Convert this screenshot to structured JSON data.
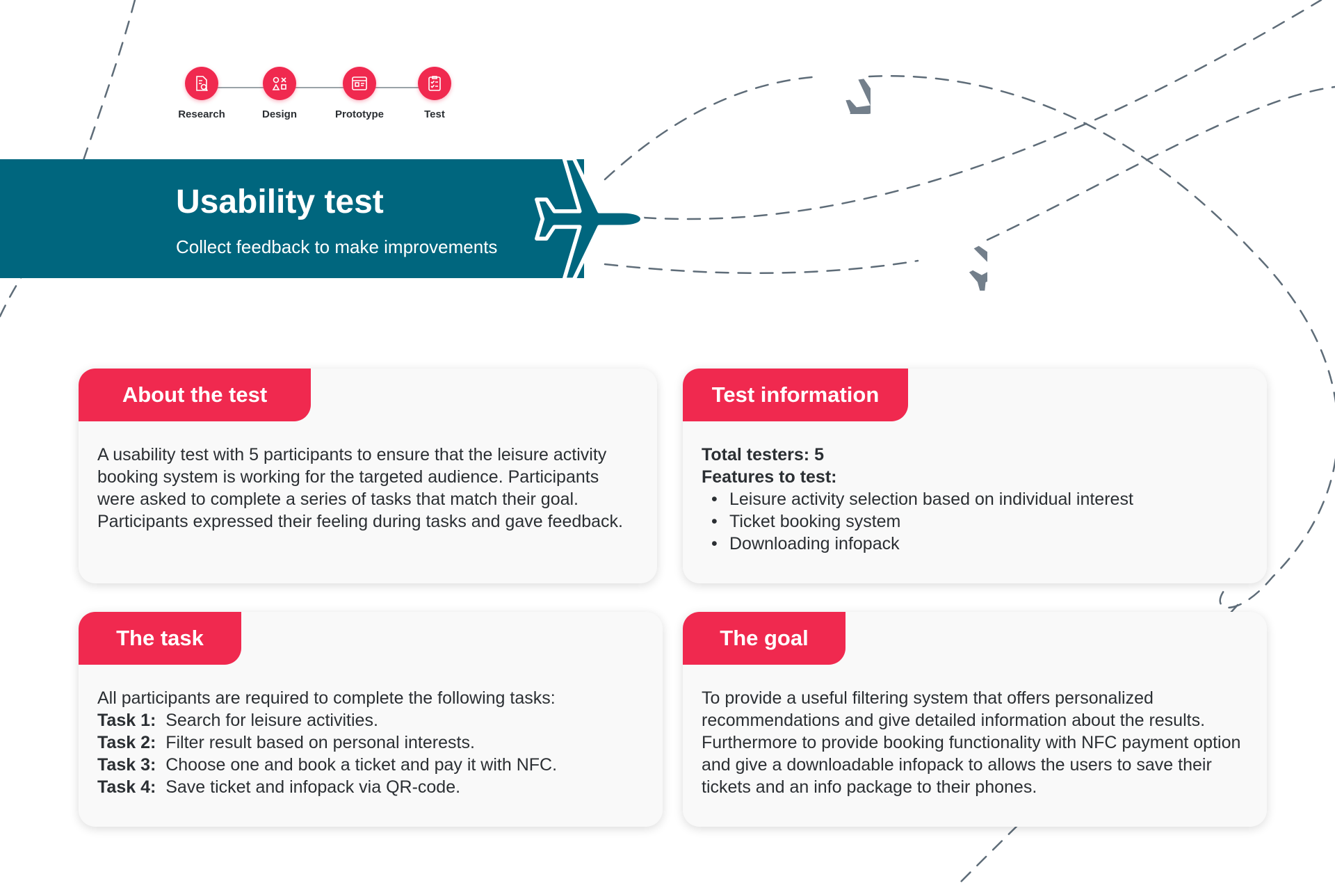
{
  "steps": [
    {
      "label": "Research",
      "icon": "research-icon"
    },
    {
      "label": "Design",
      "icon": "design-icon"
    },
    {
      "label": "Prototype",
      "icon": "prototype-icon"
    },
    {
      "label": "Test",
      "icon": "test-icon"
    }
  ],
  "header": {
    "title": "Usability test",
    "subtitle": "Collect feedback to make improvements"
  },
  "about": {
    "title": "About the test",
    "text": "A usability test with 5 participants to ensure that the leisure activity booking system is working for the targeted audience. Participants were asked to complete a series of tasks that match their goal. Participants expressed their feeling during tasks and gave feedback."
  },
  "info": {
    "title": "Test information",
    "testers_label": "Total testers: 5",
    "features_label": "Features to test:",
    "features": [
      "Leisure activity selection based on individual interest",
      "Ticket booking system",
      "Downloading infopack"
    ]
  },
  "task": {
    "title": "The task",
    "intro": "All participants are required to complete the following tasks:",
    "items": [
      {
        "label": "Task 1:",
        "text": "Search for leisure activities."
      },
      {
        "label": "Task 2:",
        "text": "Filter result based on personal interests."
      },
      {
        "label": "Task 3:",
        "text": "Choose one and book a ticket and pay it with NFC."
      },
      {
        "label": "Task 4:",
        "text": "Save ticket and infopack via QR-code."
      }
    ]
  },
  "goal": {
    "title": "The goal",
    "text": "To provide a useful filtering system that offers personalized recommendations and give detailed information about the results. Furthermore to provide booking functionality with NFC payment option and give a downloadable infopack to allows the users to save their tickets and an info package to their phones."
  },
  "colors": {
    "accent": "#f0294f",
    "banner": "#00667e",
    "plane": "#737f8b",
    "card_bg": "#f9f9f9"
  }
}
